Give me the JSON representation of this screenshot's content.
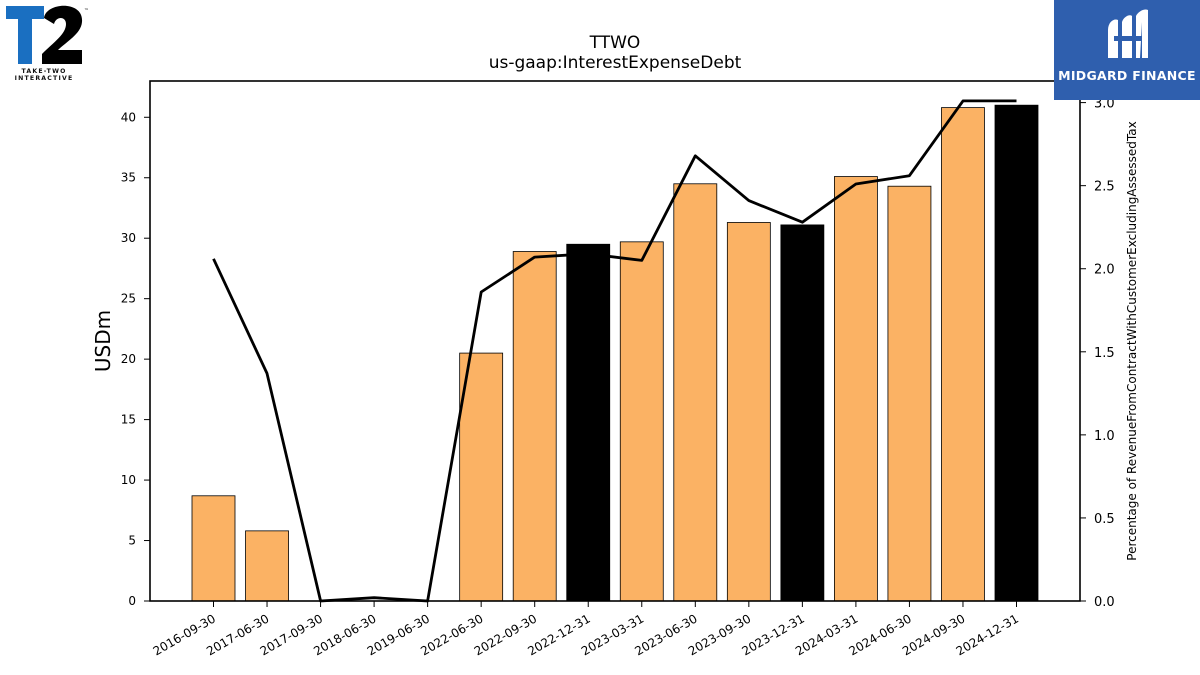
{
  "chart_data": {
    "type": "bar",
    "title": "TTWO",
    "subtitle": "us-gaap:InterestExpenseDebt",
    "ylabel": "USDm",
    "y2label": "Percentage of RevenueFromContractWithCustomerExcludingAssessedTax",
    "ylim": [
      0,
      43
    ],
    "y2lim": [
      0,
      3.13
    ],
    "yticks": [
      "0",
      "5",
      "10",
      "15",
      "20",
      "25",
      "30",
      "35",
      "40"
    ],
    "y2ticks": [
      "0.0",
      "0.5",
      "1.0",
      "1.5",
      "2.0",
      "2.5",
      "3.0"
    ],
    "categories": [
      "2016-09-30",
      "2017-06-30",
      "2017-09-30",
      "2018-06-30",
      "2019-06-30",
      "2022-06-30",
      "2022-09-30",
      "2022-12-31",
      "2023-03-31",
      "2023-06-30",
      "2023-09-30",
      "2023-12-31",
      "2024-03-31",
      "2024-06-30",
      "2024-09-30",
      "2024-12-31"
    ],
    "series": [
      {
        "type": "bar",
        "values": [
          8.7,
          5.8,
          0,
          0,
          0,
          20.5,
          28.9,
          29.5,
          29.7,
          34.5,
          31.3,
          31.1,
          35.1,
          34.3,
          40.8,
          41.0
        ],
        "highlight": [
          false,
          false,
          false,
          false,
          false,
          false,
          false,
          true,
          false,
          false,
          false,
          true,
          false,
          false,
          false,
          true
        ],
        "color": "#fbb264",
        "highlight_color": "#000000"
      },
      {
        "type": "line",
        "axis": "right",
        "values": [
          2.06,
          1.37,
          0.0,
          0.02,
          0.0,
          1.86,
          2.07,
          2.09,
          2.05,
          2.68,
          2.41,
          2.28,
          2.51,
          2.56,
          3.01,
          3.01
        ],
        "color": "#000000"
      }
    ],
    "grid": false
  },
  "logos": {
    "left_text": "TAKE-TWO INTERACTIVE",
    "left_mark": "T2",
    "right_text": "MIDGARD FINANCE"
  },
  "colors": {
    "bar": "#fbb264",
    "bar_highlight": "#000000",
    "right_logo_bg": "#2f5fae"
  }
}
